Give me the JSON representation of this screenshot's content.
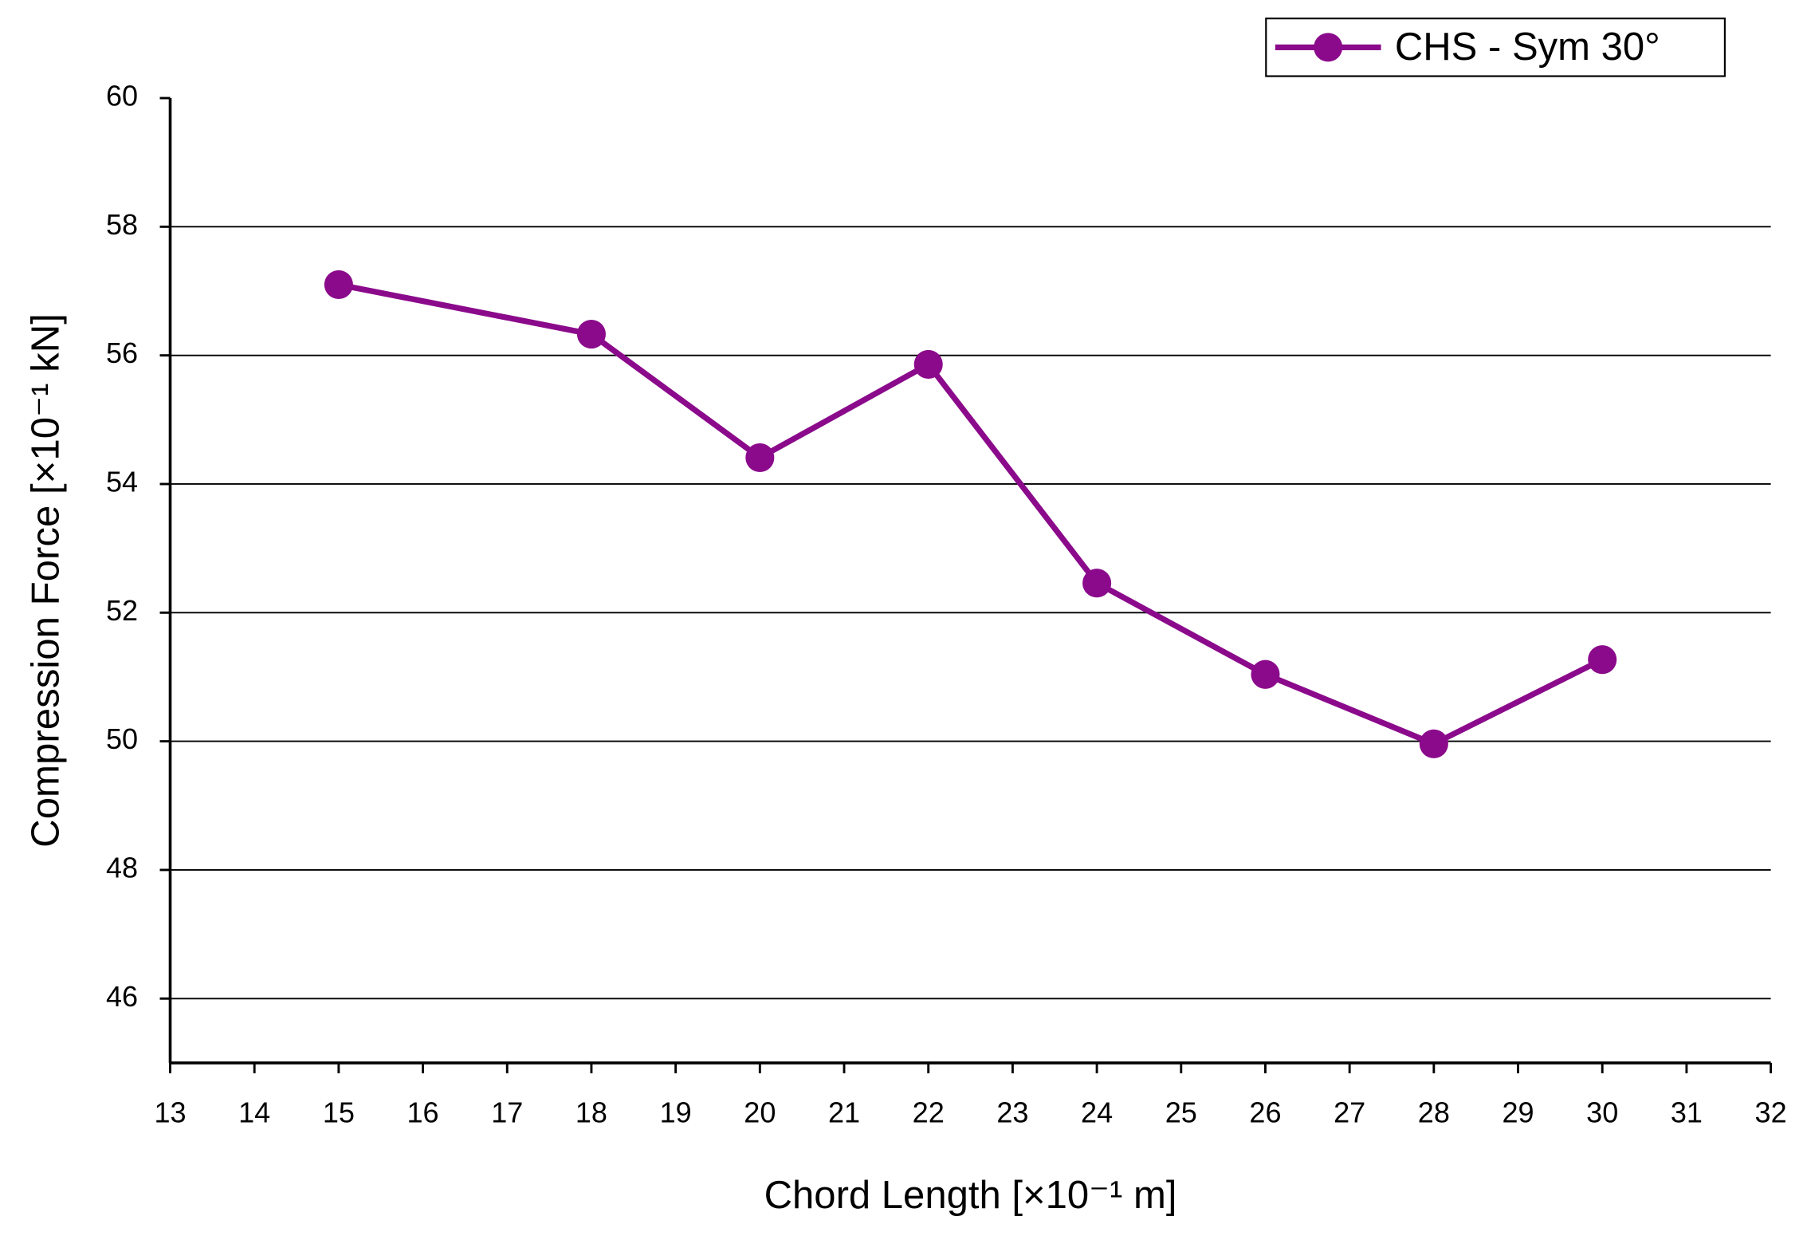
{
  "chart_data": {
    "type": "line",
    "x_label": "Chord Length [×10⁻¹ m]",
    "y_label": "Compression Force [×10⁻¹ kN]",
    "x": [
      15,
      18,
      20,
      22,
      24,
      26,
      28,
      30
    ],
    "series": [
      {
        "name": "CHS - Sym 30°",
        "color": "#8b0a8b",
        "values": [
          57.1,
          56.33,
          54.41,
          55.86,
          52.46,
          51.04,
          49.96,
          51.27
        ]
      }
    ],
    "xlim": [
      13,
      32
    ],
    "xticks": [
      13,
      14,
      15,
      16,
      17,
      18,
      19,
      20,
      21,
      22,
      23,
      24,
      25,
      26,
      27,
      28,
      29,
      30,
      31,
      32
    ],
    "ylim": [
      45,
      60
    ],
    "yticks": [
      46,
      48,
      50,
      52,
      54,
      56,
      58,
      60
    ],
    "grid": true,
    "legend": "top-right"
  }
}
